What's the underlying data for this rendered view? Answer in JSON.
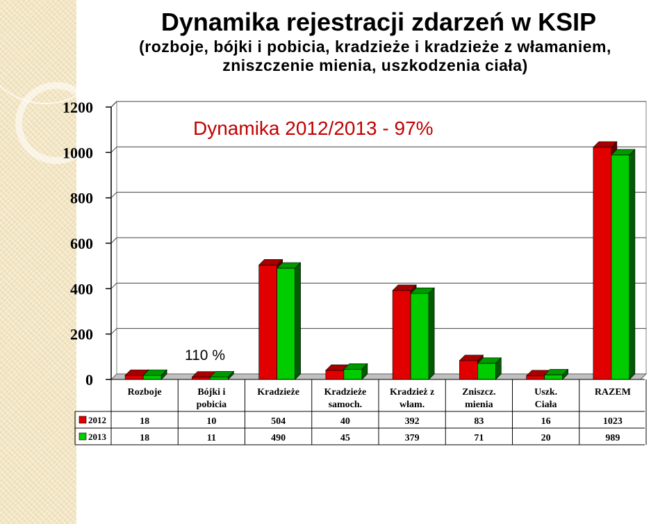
{
  "title": "Dynamika rejestracji zdarzeń w KSIP",
  "subtitle_line1": "(rozboje, bójki i pobicia, kradzieże i kradzieże z włamaniem,",
  "subtitle_line2": "zniszczenie mienia, uszkodzenia ciała)",
  "colors": {
    "series_2012": "#e00000",
    "series_2013": "#00cc00",
    "annotation": "#c00000"
  },
  "chart_data": {
    "type": "bar",
    "categories": [
      [
        "Rozboje"
      ],
      [
        "Bójki i",
        "pobicia"
      ],
      [
        "Kradzieże"
      ],
      [
        "Kradzieże",
        "samoch."
      ],
      [
        "Kradzież z",
        "włam."
      ],
      [
        "Zniszcz.",
        "mienia"
      ],
      [
        "Uszk.",
        "Ciała"
      ],
      [
        "RAZEM"
      ]
    ],
    "series": [
      {
        "name": "2012",
        "color": "#e00000",
        "values": [
          18,
          10,
          504,
          40,
          392,
          83,
          16,
          1023
        ]
      },
      {
        "name": "2013",
        "color": "#00cc00",
        "values": [
          18,
          11,
          490,
          45,
          379,
          71,
          20,
          989
        ]
      }
    ],
    "ylim": [
      0,
      1200
    ],
    "yticks": [
      0,
      200,
      400,
      600,
      800,
      1000,
      1200
    ],
    "grid": true,
    "legend": "data-table-left",
    "annotations": [
      {
        "text": "Dynamika 2012/2013 - 97%"
      },
      {
        "text": "110 %"
      }
    ]
  }
}
